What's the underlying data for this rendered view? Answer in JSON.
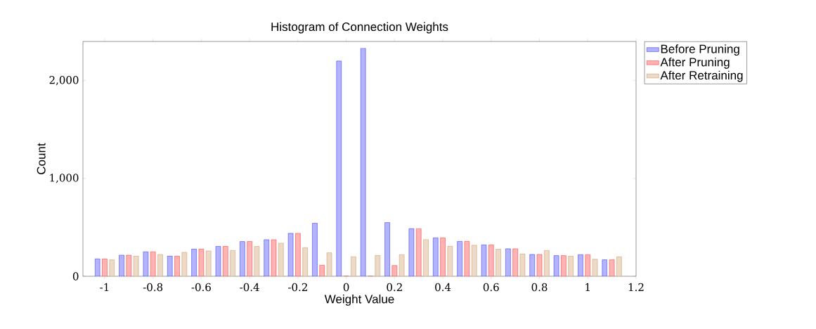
{
  "chart_data": {
    "type": "bar",
    "title": "Histogram of Connection Weights",
    "xlabel": "Weight Value",
    "ylabel": "Count",
    "x": [
      -1,
      -0.9,
      -0.8,
      -0.7,
      -0.6,
      -0.5,
      -0.4,
      -0.3,
      -0.2,
      -0.1,
      0,
      0.1,
      0.2,
      0.3,
      0.4,
      0.5,
      0.6,
      0.7,
      0.8,
      0.9,
      1.0,
      1.1
    ],
    "series": [
      {
        "name": "Before Pruning",
        "color": "#b3b3ff",
        "values": [
          178,
          216,
          250,
          206,
          278,
          305,
          355,
          374,
          439,
          542,
          2200,
          2330,
          549,
          487,
          393,
          357,
          321,
          281,
          223,
          211,
          221,
          168
        ]
      },
      {
        "name": "After Pruning",
        "color": "#ffb3b3",
        "values": [
          178,
          216,
          250,
          206,
          278,
          305,
          355,
          374,
          439,
          113,
          0,
          0,
          110,
          487,
          393,
          357,
          321,
          281,
          223,
          211,
          221,
          168
        ]
      },
      {
        "name": "After Retraining",
        "color": "#ecd9c6",
        "values": [
          168,
          206,
          223,
          245,
          259,
          264,
          305,
          338,
          293,
          240,
          200,
          213,
          221,
          376,
          307,
          317,
          276,
          228,
          264,
          206,
          175,
          199
        ]
      }
    ],
    "xlim": [
      -1.09,
      1.2
    ],
    "ylim": [
      0,
      2400
    ],
    "xticks": [
      -1,
      -0.8,
      -0.6,
      -0.4,
      -0.2,
      0,
      0.2,
      0.4,
      0.6,
      0.8,
      1,
      1.2
    ],
    "yticks": [
      0,
      {
        "value": 1000,
        "label": "1,000"
      },
      {
        "value": 2000,
        "label": "2,000"
      }
    ],
    "grid": false,
    "legend": "right"
  }
}
